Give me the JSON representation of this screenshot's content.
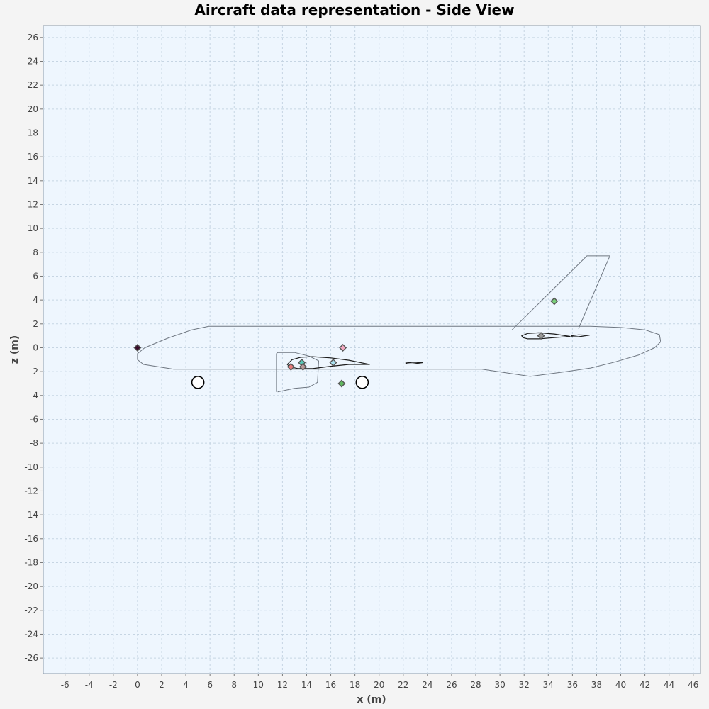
{
  "chart_data": {
    "type": "scatter",
    "title": "Aircraft data representation - Side View",
    "xlabel": "x (m)",
    "ylabel": "z (m)",
    "xlim": [
      -7.8,
      46.6
    ],
    "ylim": [
      -27.3,
      27.0
    ],
    "xticks": [
      -6,
      -4,
      -2,
      0,
      2,
      4,
      6,
      8,
      10,
      12,
      14,
      16,
      18,
      20,
      22,
      24,
      26,
      28,
      30,
      32,
      34,
      36,
      38,
      40,
      42,
      44,
      46
    ],
    "yticks": [
      -26,
      -24,
      -22,
      -20,
      -18,
      -16,
      -14,
      -12,
      -10,
      -8,
      -6,
      -4,
      -2,
      0,
      2,
      4,
      6,
      8,
      10,
      12,
      14,
      16,
      18,
      20,
      22,
      24,
      26
    ],
    "grid": true,
    "colors": {
      "plot_background": "#eef6fe",
      "grid": "#c6d5e3",
      "outline": "#6e7680",
      "airfoil": "#1c1c1c"
    },
    "outlines": [
      {
        "name": "fuselage",
        "closed": true,
        "points": [
          [
            5.9,
            1.8
          ],
          [
            37.5,
            1.8
          ],
          [
            40,
            1.7
          ],
          [
            42,
            1.5
          ],
          [
            43.2,
            1.1
          ],
          [
            43.3,
            0.5
          ],
          [
            42.8,
            0
          ],
          [
            41.5,
            -0.6
          ],
          [
            39.5,
            -1.2
          ],
          [
            37.5,
            -1.7
          ],
          [
            35.5,
            -2.0
          ],
          [
            32.5,
            -2.4
          ],
          [
            28.5,
            -1.8
          ],
          [
            6,
            -1.8
          ],
          [
            3,
            -1.8
          ],
          [
            0.5,
            -1.4
          ],
          [
            0,
            -1
          ],
          [
            0,
            -0.5
          ],
          [
            0.6,
            0
          ],
          [
            2.5,
            0.8
          ],
          [
            4.5,
            1.5
          ]
        ]
      },
      {
        "name": "vertical-tail",
        "closed": false,
        "points": [
          [
            31,
            1.5
          ],
          [
            37.2,
            7.7
          ],
          [
            39.1,
            7.7
          ],
          [
            36.5,
            1.6
          ]
        ]
      },
      {
        "name": "nacelle",
        "closed": false,
        "points": [
          [
            11.5,
            -3.7
          ],
          [
            11.5,
            -0.5
          ],
          [
            11.6,
            -0.4
          ],
          [
            13,
            -0.4
          ],
          [
            14.2,
            -0.7
          ],
          [
            15,
            -1.1
          ],
          [
            14.9,
            -2.9
          ],
          [
            14.2,
            -3.3
          ],
          [
            13,
            -3.4
          ],
          [
            11.6,
            -3.7
          ]
        ]
      },
      {
        "name": "wing-airfoil",
        "closed": true,
        "points": [
          [
            12.4,
            -1.4
          ],
          [
            12.8,
            -1.0
          ],
          [
            13.5,
            -0.8
          ],
          [
            14.5,
            -0.75
          ],
          [
            16,
            -0.85
          ],
          [
            17.5,
            -1.05
          ],
          [
            19.2,
            -1.4
          ],
          [
            17.5,
            -1.4
          ],
          [
            16,
            -1.55
          ],
          [
            14.5,
            -1.75
          ],
          [
            13.3,
            -1.75
          ],
          [
            12.6,
            -1.6
          ]
        ]
      },
      {
        "name": "horizontal-tail-airfoil",
        "closed": true,
        "points": [
          [
            31.8,
            1.0
          ],
          [
            32.3,
            1.2
          ],
          [
            33.2,
            1.25
          ],
          [
            34.5,
            1.15
          ],
          [
            35.8,
            0.95
          ],
          [
            34.5,
            0.85
          ],
          [
            33.2,
            0.75
          ],
          [
            32.3,
            0.75
          ],
          [
            31.9,
            0.85
          ]
        ]
      },
      {
        "name": "canard-airfoil",
        "closed": true,
        "points": [
          [
            35.9,
            1.0
          ],
          [
            36.5,
            1.08
          ],
          [
            37.4,
            1.05
          ],
          [
            36.5,
            0.92
          ],
          [
            36.0,
            0.93
          ]
        ]
      },
      {
        "name": "small-airfoil",
        "closed": true,
        "points": [
          [
            22.2,
            -1.28
          ],
          [
            22.8,
            -1.22
          ],
          [
            23.6,
            -1.25
          ],
          [
            22.8,
            -1.36
          ],
          [
            22.3,
            -1.35
          ]
        ]
      }
    ],
    "wheels": [
      {
        "name": "nose-wheel",
        "x": 5.0,
        "z": -2.9
      },
      {
        "name": "main-wheel",
        "x": 18.6,
        "z": -2.9
      }
    ],
    "points": [
      {
        "x": 0.0,
        "z": 0.0,
        "color": "#3a0d2a"
      },
      {
        "x": 12.7,
        "z": -1.6,
        "color": "#e87b7b"
      },
      {
        "x": 13.6,
        "z": -1.25,
        "color": "#58c8b8"
      },
      {
        "x": 13.7,
        "z": -1.6,
        "color": "#b89a9a"
      },
      {
        "x": 16.2,
        "z": -1.25,
        "color": "#a8e0f0"
      },
      {
        "x": 17.0,
        "z": 0.0,
        "color": "#f2a8c0"
      },
      {
        "x": 16.9,
        "z": -3.0,
        "color": "#60b860"
      },
      {
        "x": 33.4,
        "z": 1.0,
        "color": "#9a9a9a"
      },
      {
        "x": 34.5,
        "z": 3.9,
        "color": "#7ad07a"
      }
    ]
  }
}
